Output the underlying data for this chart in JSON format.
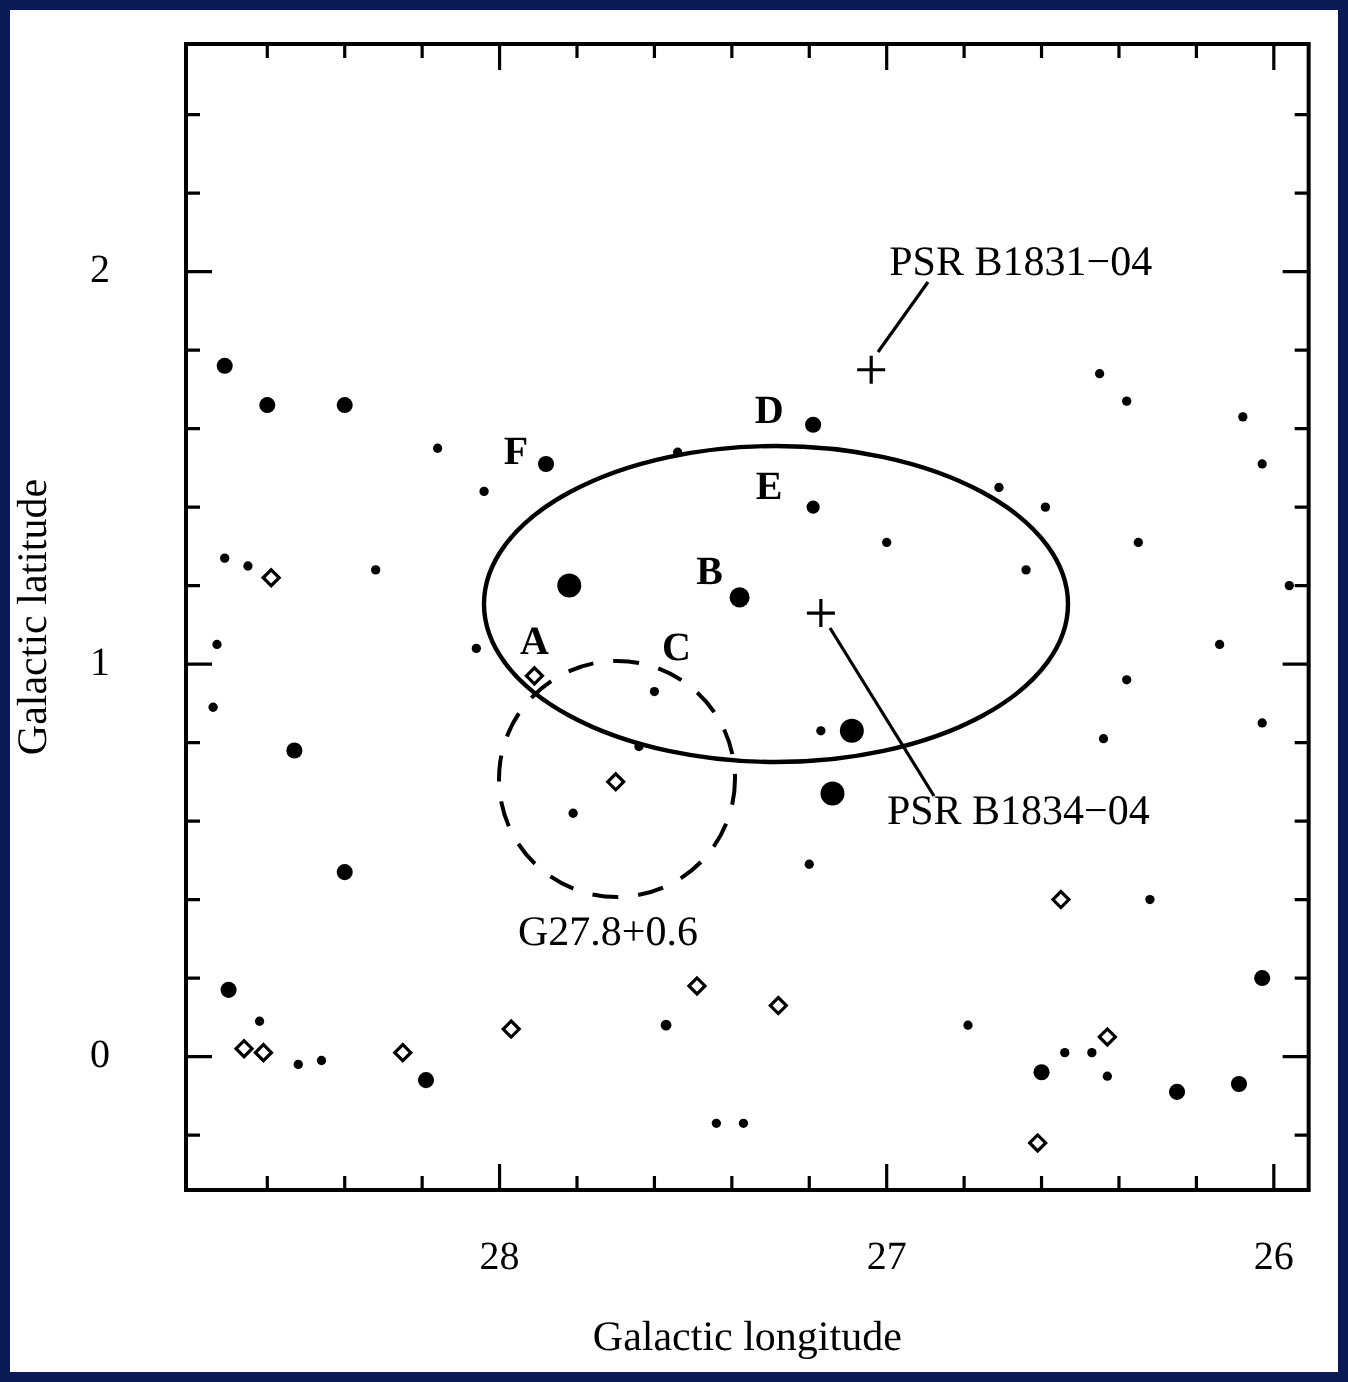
{
  "chart_data": {
    "type": "scatter",
    "xlabel": "Galactic longitude",
    "ylabel": "Galactic latitude",
    "xlim": [
      28.81,
      25.91
    ],
    "ylim": [
      -0.34,
      2.58
    ],
    "xticks": [
      {
        "value": 28.6,
        "label": null
      },
      {
        "value": 28.4,
        "label": null
      },
      {
        "value": 28.2,
        "label": null
      },
      28,
      {
        "value": 27.8,
        "label": null
      },
      {
        "value": 27.6,
        "label": null
      },
      {
        "value": 27.4,
        "label": null
      },
      {
        "value": 27.2,
        "label": null
      },
      27,
      {
        "value": 26.8,
        "label": null
      },
      {
        "value": 26.6,
        "label": null
      },
      {
        "value": 26.4,
        "label": null
      },
      {
        "value": 26.2,
        "label": null
      },
      26
    ],
    "yticks": [
      {
        "value": -0.2,
        "label": null
      },
      0,
      {
        "value": 0.2,
        "label": null
      },
      {
        "value": 0.4,
        "label": null
      },
      {
        "value": 0.6,
        "label": null
      },
      {
        "value": 0.8,
        "label": null
      },
      1,
      {
        "value": 1.2,
        "label": null
      },
      {
        "value": 1.4,
        "label": null
      },
      {
        "value": 1.6,
        "label": null
      },
      {
        "value": 1.8,
        "label": null
      },
      2,
      {
        "value": 2.2,
        "label": null
      },
      {
        "value": 2.4,
        "label": null
      }
    ],
    "annotations": [
      {
        "text": "A",
        "x": 27.91,
        "y": 0.97
      },
      {
        "text": "B",
        "x": 27.38,
        "y": 1.17
      },
      {
        "text": "C",
        "x": 27.6,
        "y": 0.93
      },
      {
        "text": "D",
        "x": 27.19,
        "y": 1.61
      },
      {
        "text": "E",
        "x": 27.19,
        "y": 1.4
      },
      {
        "text": "F",
        "x": 27.88,
        "y": 1.51
      },
      {
        "text": "PSR B1831−04",
        "x": 27.04,
        "y": 1.75
      },
      {
        "text": "PSR B1834−04",
        "x": 27.17,
        "y": 1.13
      },
      "G27.8+0.6"
    ],
    "series": [
      {
        "type": "bubble",
        "color": "#000000",
        "x": [
          27.82,
          27.09,
          27.14,
          27.38,
          28.71,
          28.6,
          28.4,
          27.88,
          27.19,
          28.53,
          28.4,
          28.7,
          28.19,
          26.03,
          26.6,
          26.25,
          26.09,
          27.19,
          28.16,
          28.04,
          27.54,
          28.71,
          28.65,
          28.32,
          26.45,
          26.38,
          26.08,
          26.03,
          26.71,
          26.59,
          27.0,
          26.35,
          26.64,
          25.96,
          26.14,
          26.38,
          26.03,
          26.44,
          27.17,
          27.2,
          26.32,
          26.79,
          26.54,
          26.47,
          26.43,
          27.44,
          27.37,
          28.73,
          28.74,
          28.06,
          27.6,
          27.64,
          27.81,
          28.62,
          28.52,
          28.46,
          27.57
        ],
        "values": [
          1.2,
          0.83,
          0.67,
          1.17,
          1.76,
          1.66,
          1.66,
          1.51,
          1.61,
          0.78,
          0.47,
          0.17,
          -0.06,
          0.2,
          -0.04,
          -0.09,
          -0.07,
          1.4,
          1.55,
          1.44,
          1.54,
          1.27,
          1.25,
          1.24,
          1.74,
          1.67,
          1.63,
          1.51,
          1.45,
          1.4,
          1.31,
          1.31,
          1.24,
          1.2,
          1.05,
          0.96,
          0.85,
          0.81,
          0.83,
          0.49,
          0.4,
          0.08,
          0.01,
          0.01,
          -0.05,
          -0.17,
          -0.17,
          1.05,
          0.89,
          1.04,
          0.93,
          0.79,
          0.62,
          0.09,
          -0.02,
          -0.01,
          0.08
        ],
        "sizes": [
          1,
          1,
          1,
          0.7,
          0.45,
          0.45,
          0.45,
          0.45,
          0.45,
          0.45,
          0.45,
          0.45,
          0.45,
          0.45,
          0.45,
          0.45,
          0.45,
          0.3,
          0.15,
          0.15,
          0.15,
          0.15,
          0.15,
          0.15,
          0.15,
          0.15,
          0.15,
          0.15,
          0.15,
          0.15,
          0.15,
          0.15,
          0.15,
          0.15,
          0.15,
          0.15,
          0.15,
          0.15,
          0.15,
          0.15,
          0.15,
          0.15,
          0.15,
          0.15,
          0.15,
          0.15,
          0.15,
          0.15,
          0.15,
          0.15,
          0.15,
          0.15,
          0.15,
          0.15,
          0.15,
          0.15,
          0.2
        ]
      },
      {
        "marker": "diamond",
        "color": "#000000",
        "x": [
          28.59,
          27.91,
          27.7,
          28.66,
          28.61,
          28.25,
          27.97,
          27.49,
          27.28,
          26.55,
          26.43,
          26.61
        ],
        "values": [
          1.22,
          0.97,
          0.7,
          0.02,
          0.01,
          0.01,
          0.07,
          0.18,
          0.13,
          0.4,
          0.05,
          -0.22
        ]
      },
      {
        "marker": "cross",
        "color": "#000000",
        "x": [
          27.04,
          27.17
        ],
        "values": [
          1.75,
          1.13
        ]
      }
    ]
  }
}
